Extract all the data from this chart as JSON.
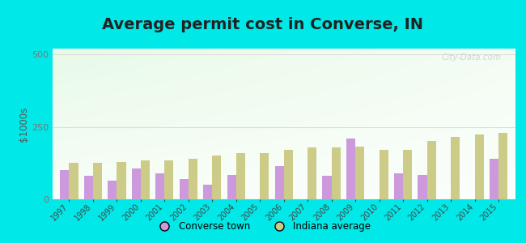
{
  "title": "Average permit cost in Converse, IN",
  "ylabel": "$1000s",
  "years": [
    1997,
    1998,
    1999,
    2000,
    2001,
    2002,
    2003,
    2004,
    2005,
    2006,
    2007,
    2008,
    2009,
    2010,
    2011,
    2012,
    2013,
    2014,
    2015
  ],
  "converse": [
    100,
    80,
    65,
    105,
    90,
    70,
    50,
    85,
    0,
    115,
    0,
    80,
    210,
    0,
    90,
    85,
    0,
    0,
    140
  ],
  "indiana": [
    125,
    125,
    130,
    135,
    135,
    140,
    150,
    160,
    160,
    170,
    180,
    178,
    183,
    170,
    170,
    200,
    215,
    225,
    230
  ],
  "converse_color": "#cc99dd",
  "indiana_color": "#cccc88",
  "background_outer": "#00e8e8",
  "ylim": [
    0,
    520
  ],
  "yticks": [
    0,
    250,
    500
  ],
  "title_fontsize": 14,
  "legend_labels": [
    "Converse town",
    "Indiana average"
  ],
  "watermark": "City-Data.com"
}
